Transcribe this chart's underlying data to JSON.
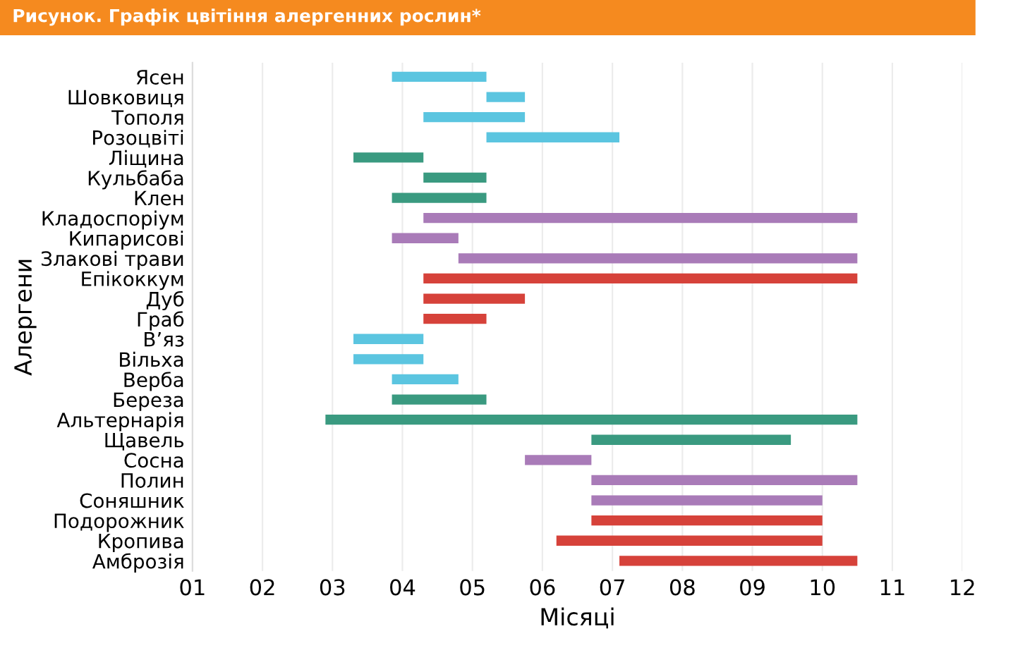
{
  "chart_data": {
    "type": "bar",
    "orientation": "horizontal",
    "title": "Рисунок. Графік цвітіння алергенних рослин*",
    "xlabel": "Місяці",
    "ylabel": "Алергени",
    "categories": [
      "Ясен",
      "Шовковиця",
      "Тополя",
      "Розоцвіті",
      "Ліщина",
      "Кульбаба",
      "Клен",
      "Кладоспоріум",
      "Кипарисові",
      "Злакові трави",
      "Епікоккум",
      "Дуб",
      "Граб",
      "В’яз",
      "Вільха",
      "Верба",
      "Береза",
      "Альтернарія",
      "Щавель",
      "Сосна",
      "Полин",
      "Соняшник",
      "Подорожник",
      "Кропива",
      "Амброзія"
    ],
    "base": [
      3.85,
      5.2,
      4.3,
      5.2,
      3.3,
      4.3,
      3.85,
      4.3,
      3.85,
      4.8,
      4.3,
      4.3,
      4.3,
      3.3,
      3.3,
      3.85,
      3.85,
      2.9,
      6.7,
      5.75,
      6.7,
      6.7,
      6.7,
      6.2,
      7.1
    ],
    "values": [
      1.35,
      0.55,
      1.45,
      1.9,
      1.0,
      0.9,
      1.35,
      6.2,
      0.95,
      5.7,
      6.2,
      1.45,
      0.9,
      1.0,
      1.0,
      0.95,
      1.35,
      7.6,
      2.85,
      0.95,
      3.8,
      3.3,
      3.3,
      3.8,
      3.4
    ],
    "colors": [
      "#5bc5e0",
      "#5bc5e0",
      "#5bc5e0",
      "#5bc5e0",
      "#3a9a80",
      "#3a9a80",
      "#3a9a80",
      "#a97bb8",
      "#a97bb8",
      "#a97bb8",
      "#d6423a",
      "#d6423a",
      "#d6423a",
      "#5bc5e0",
      "#5bc5e0",
      "#5bc5e0",
      "#3a9a80",
      "#3a9a80",
      "#3a9a80",
      "#a97bb8",
      "#a97bb8",
      "#a97bb8",
      "#d6423a",
      "#d6423a",
      "#d6423a"
    ],
    "xlim": [
      1,
      12
    ],
    "xticks": [
      {
        "value": 1,
        "label": "01"
      },
      {
        "value": 2,
        "label": "02"
      },
      {
        "value": 3,
        "label": "03"
      },
      {
        "value": 4,
        "label": "04"
      },
      {
        "value": 5,
        "label": "05"
      },
      {
        "value": 6,
        "label": "06"
      },
      {
        "value": 7,
        "label": "07"
      },
      {
        "value": 8,
        "label": "08"
      },
      {
        "value": 9,
        "label": "09"
      },
      {
        "value": 10,
        "label": "10"
      },
      {
        "value": 11,
        "label": "11"
      },
      {
        "value": 12,
        "label": "12"
      }
    ],
    "grid": "x"
  }
}
